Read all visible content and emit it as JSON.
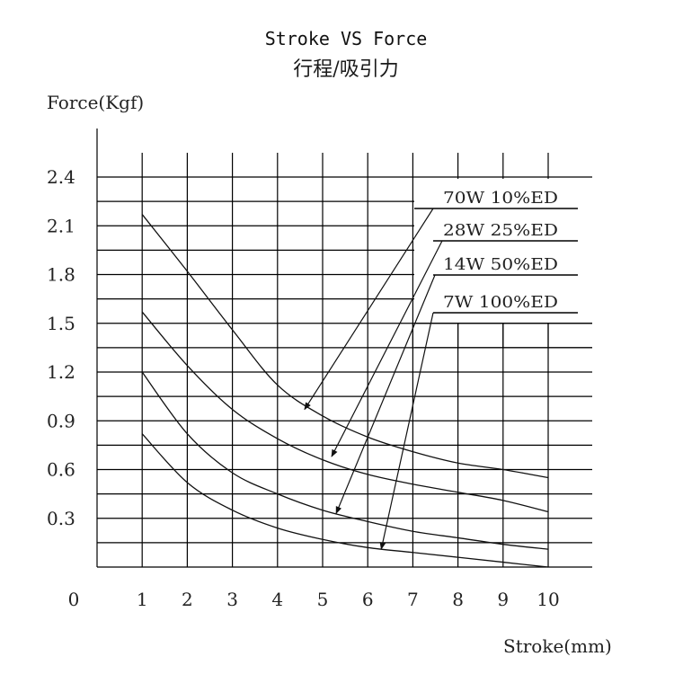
{
  "chart_data": {
    "type": "line",
    "title": "Stroke VS  Force",
    "subtitle": "行程/吸引力",
    "xlabel": "Stroke(mm)",
    "ylabel": "Force(Kgf)",
    "xlim": [
      0,
      10
    ],
    "ylim": [
      0,
      2.4
    ],
    "x_ticks": [
      "0",
      "1",
      "2",
      "3",
      "4",
      "5",
      "6",
      "7",
      "8",
      "9",
      "10"
    ],
    "y_ticks": [
      "2.4",
      "2.1",
      "1.8",
      "1.5",
      "1.2",
      "0.9",
      "0.6",
      "0.3"
    ],
    "grid": true,
    "series": [
      {
        "name": "70W   10%ED",
        "x": [
          1,
          2,
          3,
          4,
          5,
          6,
          7,
          8,
          9,
          10
        ],
        "values": [
          2.17,
          1.82,
          1.46,
          1.12,
          0.93,
          0.8,
          0.71,
          0.64,
          0.6,
          0.55
        ]
      },
      {
        "name": "28W   25%ED",
        "x": [
          1,
          2,
          3,
          4,
          5,
          6,
          7,
          8,
          9,
          10
        ],
        "values": [
          1.57,
          1.24,
          0.97,
          0.79,
          0.66,
          0.57,
          0.51,
          0.46,
          0.41,
          0.34
        ]
      },
      {
        "name": "14W   50%ED",
        "x": [
          1,
          2,
          3,
          4,
          5,
          6,
          7,
          8,
          9,
          10
        ],
        "values": [
          1.2,
          0.82,
          0.58,
          0.45,
          0.35,
          0.28,
          0.22,
          0.18,
          0.14,
          0.11
        ]
      },
      {
        "name": "7W   100%ED",
        "x": [
          1,
          2,
          3,
          4,
          5,
          6,
          7,
          8,
          9,
          10
        ],
        "values": [
          0.82,
          0.52,
          0.35,
          0.24,
          0.17,
          0.12,
          0.09,
          0.06,
          0.03,
          0.0
        ]
      }
    ]
  }
}
